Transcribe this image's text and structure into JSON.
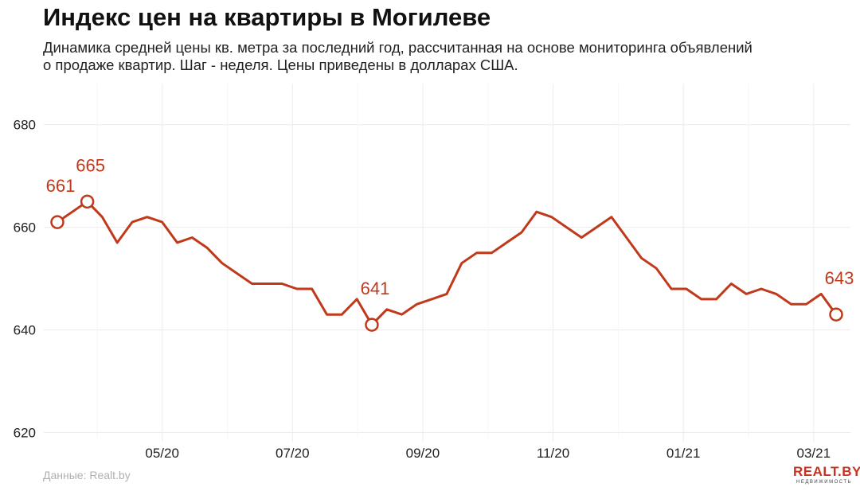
{
  "title": "Индекс цен на квартиры в Могилеве",
  "subtitle": "Динамика средней цены кв. метра за последний год, рассчитанная на основе мониторинга объявлений о продаже квартир. Шаг - неделя. Цены приведены в долларах США.",
  "source": "Данные: Realt.by",
  "logo": {
    "main": "REALT.BY",
    "sub": "НЕДВИЖИМОСТЬ"
  },
  "chart_data": {
    "type": "line",
    "title": "Индекс цен на квартиры в Могилеве",
    "xlabel": "",
    "ylabel": "",
    "series_color": "#c0391b",
    "y_ticks": [
      620,
      640,
      660,
      680
    ],
    "x_tick_labels": [
      "05/20",
      "07/20",
      "09/20",
      "11/20",
      "01/21",
      "03/21"
    ],
    "ylim": [
      619,
      688
    ],
    "values": [
      661,
      663,
      665,
      662,
      657,
      661,
      662,
      661,
      657,
      658,
      656,
      653,
      651,
      649,
      649,
      649,
      648,
      648,
      643,
      643,
      646,
      641,
      644,
      643,
      645,
      646,
      647,
      653,
      655,
      655,
      657,
      659,
      663,
      662,
      660,
      658,
      660,
      662,
      658,
      654,
      652,
      648,
      648,
      646,
      646,
      649,
      647,
      648,
      647,
      645,
      645,
      647,
      643
    ],
    "annotations": [
      {
        "index": 0,
        "label": "661"
      },
      {
        "index": 2,
        "label": "665"
      },
      {
        "index": 21,
        "label": "641"
      },
      {
        "index": 52,
        "label": "643"
      }
    ],
    "grid": true
  }
}
